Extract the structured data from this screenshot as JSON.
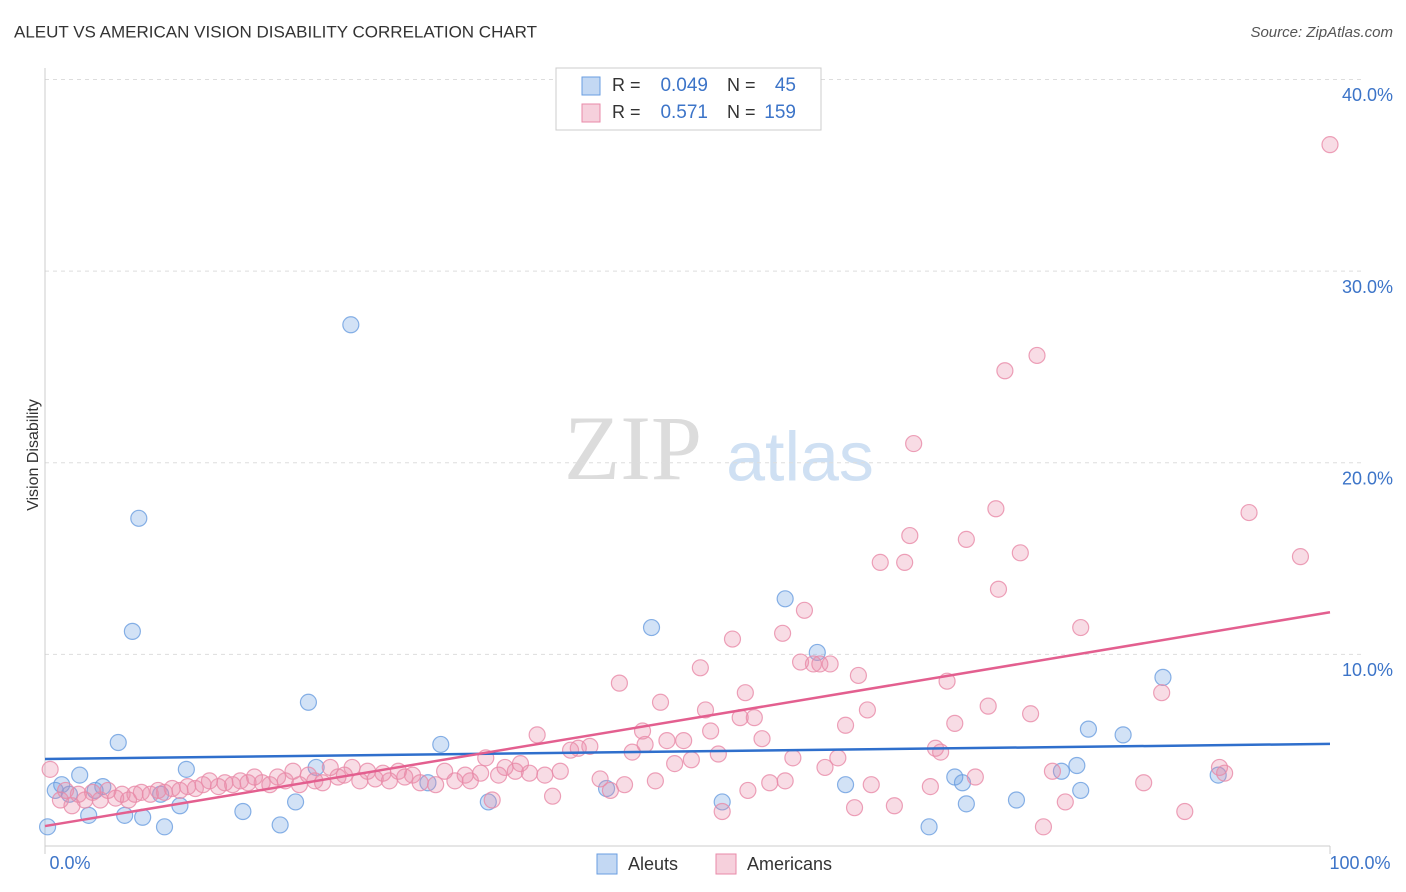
{
  "chart_data": {
    "type": "scatter",
    "title": "ALEUT VS AMERICAN VISION DISABILITY CORRELATION CHART",
    "source": "Source: ZipAtlas.com",
    "watermark": [
      "ZIP",
      "atlas"
    ],
    "ylabel": "Vision Disability",
    "xlim": [
      0,
      100
    ],
    "ylim": [
      0,
      40.6
    ],
    "xticks": [
      {
        "value": 0,
        "label": "0.0%"
      },
      {
        "value": 100,
        "label": "100.0%"
      }
    ],
    "yticks": [
      {
        "value": 10,
        "label": "10.0%"
      },
      {
        "value": 20,
        "label": "20.0%"
      },
      {
        "value": 30,
        "label": "30.0%"
      },
      {
        "value": 40,
        "label": "40.0%"
      }
    ],
    "grid": true,
    "legend_labels": {
      "r": "R =",
      "n": "N ="
    },
    "series": [
      {
        "name": "Aleuts",
        "color": "#6a9ee0",
        "line_color": "#2f6fcc",
        "r": 0.049,
        "n": 45,
        "trend": {
          "x": [
            0,
            100
          ],
          "y": [
            4.54,
            5.33
          ]
        },
        "x": [
          0.2,
          0.8,
          1.3,
          1.9,
          2.7,
          3.4,
          3.9,
          4.5,
          5.7,
          6.2,
          6.8,
          7.3,
          7.6,
          9.0,
          9.3,
          10.5,
          11.0,
          15.4,
          18.3,
          19.5,
          20.5,
          21.1,
          23.8,
          29.8,
          30.8,
          34.5,
          43.7,
          47.2,
          52.7,
          57.6,
          60.1,
          62.3,
          68.8,
          70.8,
          71.4,
          71.7,
          75.6,
          79.1,
          80.3,
          80.6,
          81.2,
          83.9,
          87.0,
          91.3
        ],
        "values": [
          1.0,
          2.9,
          3.2,
          2.7,
          3.7,
          1.6,
          2.9,
          3.1,
          5.4,
          1.6,
          11.2,
          17.1,
          1.5,
          2.7,
          1.0,
          2.1,
          4.0,
          1.8,
          1.1,
          2.3,
          7.5,
          4.1,
          27.2,
          3.3,
          5.3,
          2.3,
          3.0,
          11.4,
          2.3,
          12.9,
          10.1,
          3.2,
          1.0,
          3.6,
          3.3,
          2.2,
          2.4,
          3.9,
          4.2,
          2.9,
          6.1,
          5.8,
          8.8,
          3.7
        ]
      },
      {
        "name": "Americans",
        "color": "#e88aa8",
        "line_color": "#e35f8f",
        "r": 0.571,
        "n": 159,
        "trend": {
          "x": [
            0,
            100
          ],
          "y": [
            1.04,
            12.2
          ]
        },
        "x": [
          0.4,
          1.2,
          1.6,
          2.1,
          2.6,
          3.1,
          3.7,
          4.3,
          4.9,
          5.5,
          6.0,
          6.5,
          7.0,
          7.5,
          8.2,
          8.8,
          9.3,
          9.9,
          10.5,
          11.1,
          11.7,
          12.3,
          12.8,
          13.5,
          14.0,
          14.6,
          15.2,
          15.8,
          16.3,
          16.9,
          17.5,
          18.1,
          18.7,
          19.3,
          19.8,
          20.5,
          21.0,
          21.6,
          22.2,
          22.8,
          23.3,
          23.9,
          24.5,
          25.1,
          25.7,
          26.3,
          26.8,
          27.5,
          28.0,
          28.6,
          29.2,
          30.4,
          31.1,
          31.9,
          32.7,
          33.1,
          33.9,
          34.3,
          34.8,
          35.3,
          35.8,
          36.6,
          37.0,
          37.7,
          38.3,
          38.9,
          39.5,
          40.1,
          40.9,
          41.5,
          42.4,
          43.2,
          44.0,
          44.7,
          45.1,
          45.7,
          46.5,
          46.7,
          47.5,
          47.9,
          48.4,
          49.0,
          49.7,
          50.3,
          51.0,
          51.4,
          51.8,
          52.4,
          52.7,
          53.5,
          54.1,
          54.5,
          54.7,
          55.2,
          55.8,
          56.4,
          57.4,
          57.6,
          58.2,
          59.1,
          58.8,
          59.8,
          60.3,
          60.7,
          61.1,
          61.7,
          62.3,
          63.0,
          63.3,
          64.0,
          64.3,
          65.0,
          66.1,
          66.9,
          67.3,
          67.6,
          68.9,
          69.3,
          69.7,
          70.2,
          70.8,
          71.7,
          72.4,
          73.4,
          74.0,
          74.2,
          74.7,
          75.9,
          77.2,
          76.7,
          77.7,
          78.4,
          79.4,
          80.6,
          85.5,
          86.9,
          88.7,
          91.4,
          91.8,
          93.7,
          97.7,
          100.0
        ],
        "values": [
          4.0,
          2.4,
          2.9,
          2.1,
          2.7,
          2.4,
          2.8,
          2.4,
          2.9,
          2.5,
          2.7,
          2.4,
          2.7,
          2.8,
          2.7,
          2.9,
          2.8,
          3.0,
          2.9,
          3.1,
          3.0,
          3.2,
          3.4,
          3.1,
          3.3,
          3.2,
          3.4,
          3.3,
          3.6,
          3.3,
          3.2,
          3.6,
          3.4,
          3.9,
          3.2,
          3.7,
          3.4,
          3.3,
          4.1,
          3.6,
          3.7,
          4.1,
          3.4,
          3.9,
          3.5,
          3.8,
          3.4,
          3.9,
          3.6,
          3.7,
          3.3,
          3.2,
          3.9,
          3.4,
          3.7,
          3.4,
          3.8,
          4.6,
          2.4,
          3.7,
          4.1,
          3.9,
          4.3,
          3.8,
          5.8,
          3.7,
          2.6,
          3.9,
          5.0,
          5.1,
          5.2,
          3.5,
          2.9,
          8.5,
          3.2,
          4.9,
          6.0,
          5.3,
          3.4,
          7.5,
          5.5,
          4.3,
          5.5,
          4.5,
          9.3,
          7.1,
          6.0,
          4.8,
          1.8,
          10.8,
          6.7,
          8.0,
          2.9,
          6.7,
          5.6,
          3.3,
          11.1,
          3.4,
          4.6,
          12.3,
          9.6,
          9.5,
          9.5,
          4.1,
          9.5,
          4.6,
          6.3,
          2.0,
          8.9,
          7.1,
          3.2,
          14.8,
          2.1,
          14.8,
          16.2,
          21.0,
          3.1,
          5.1,
          4.9,
          8.6,
          6.4,
          16.0,
          3.6,
          7.3,
          17.6,
          13.4,
          24.8,
          15.3,
          25.6,
          6.9,
          1.0,
          3.9,
          2.3,
          11.4,
          3.3,
          8.0,
          1.8,
          4.1,
          3.8,
          17.4,
          15.1,
          36.6
        ]
      }
    ]
  }
}
